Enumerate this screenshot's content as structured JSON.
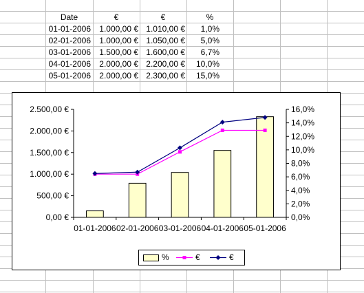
{
  "sheet": {
    "headers": [
      "Date",
      "€",
      "€",
      "%"
    ],
    "rows": [
      [
        "01-01-2006",
        "1.000,00 €",
        "1.010,00 €",
        "1,0%"
      ],
      [
        "02-01-2006",
        "1.000,00 €",
        "1.050,00 €",
        "5,0%"
      ],
      [
        "03-01-2006",
        "1.500,00 €",
        "1.600,00 €",
        "6,7%"
      ],
      [
        "04-01-2006",
        "2.000,00 €",
        "2.200,00 €",
        "10,0%"
      ],
      [
        "05-01-2006",
        "2.000,00 €",
        "2.300,00 €",
        "15,0%"
      ]
    ]
  },
  "chart_data": {
    "type": "bar",
    "title": "",
    "categories": [
      "01-01-2006",
      "02-01-2006",
      "03-01-2006",
      "04-01-2006",
      "05-01-2006"
    ],
    "series": [
      {
        "name": "%",
        "type": "bar",
        "axis": "left",
        "values": [
          150,
          790,
          1040,
          1550,
          2330
        ],
        "color": "#ffffcc",
        "stroke": "#000000"
      },
      {
        "name": "€",
        "type": "line",
        "axis": "right",
        "marker": "square",
        "values": [
          6.4,
          6.4,
          9.7,
          12.9,
          12.9
        ],
        "color": "#ff00ff"
      },
      {
        "name": "€",
        "type": "line",
        "axis": "right",
        "marker": "diamond",
        "values": [
          6.5,
          6.7,
          10.3,
          14.1,
          14.8
        ],
        "color": "#000080"
      }
    ],
    "left_axis": {
      "min": 0,
      "max": 2500,
      "step": 500,
      "tick_labels": [
        "0,00 €",
        "500,00 €",
        "1.000,00 €",
        "1.500,00 €",
        "2.000,00 €",
        "2.500,00 €"
      ]
    },
    "right_axis": {
      "min": 0,
      "max": 16,
      "step": 2,
      "tick_labels": [
        "0,0%",
        "2,0%",
        "4,0%",
        "6,0%",
        "8,0%",
        "10,0%",
        "12,0%",
        "14,0%",
        "16,0%"
      ]
    },
    "grid": false,
    "legend": "bottom"
  },
  "colors": {
    "gridline": "#c0c0c0",
    "bar_fill": "#ffffcc",
    "line_pct": "#ff00ff",
    "line_eur": "#000080"
  }
}
